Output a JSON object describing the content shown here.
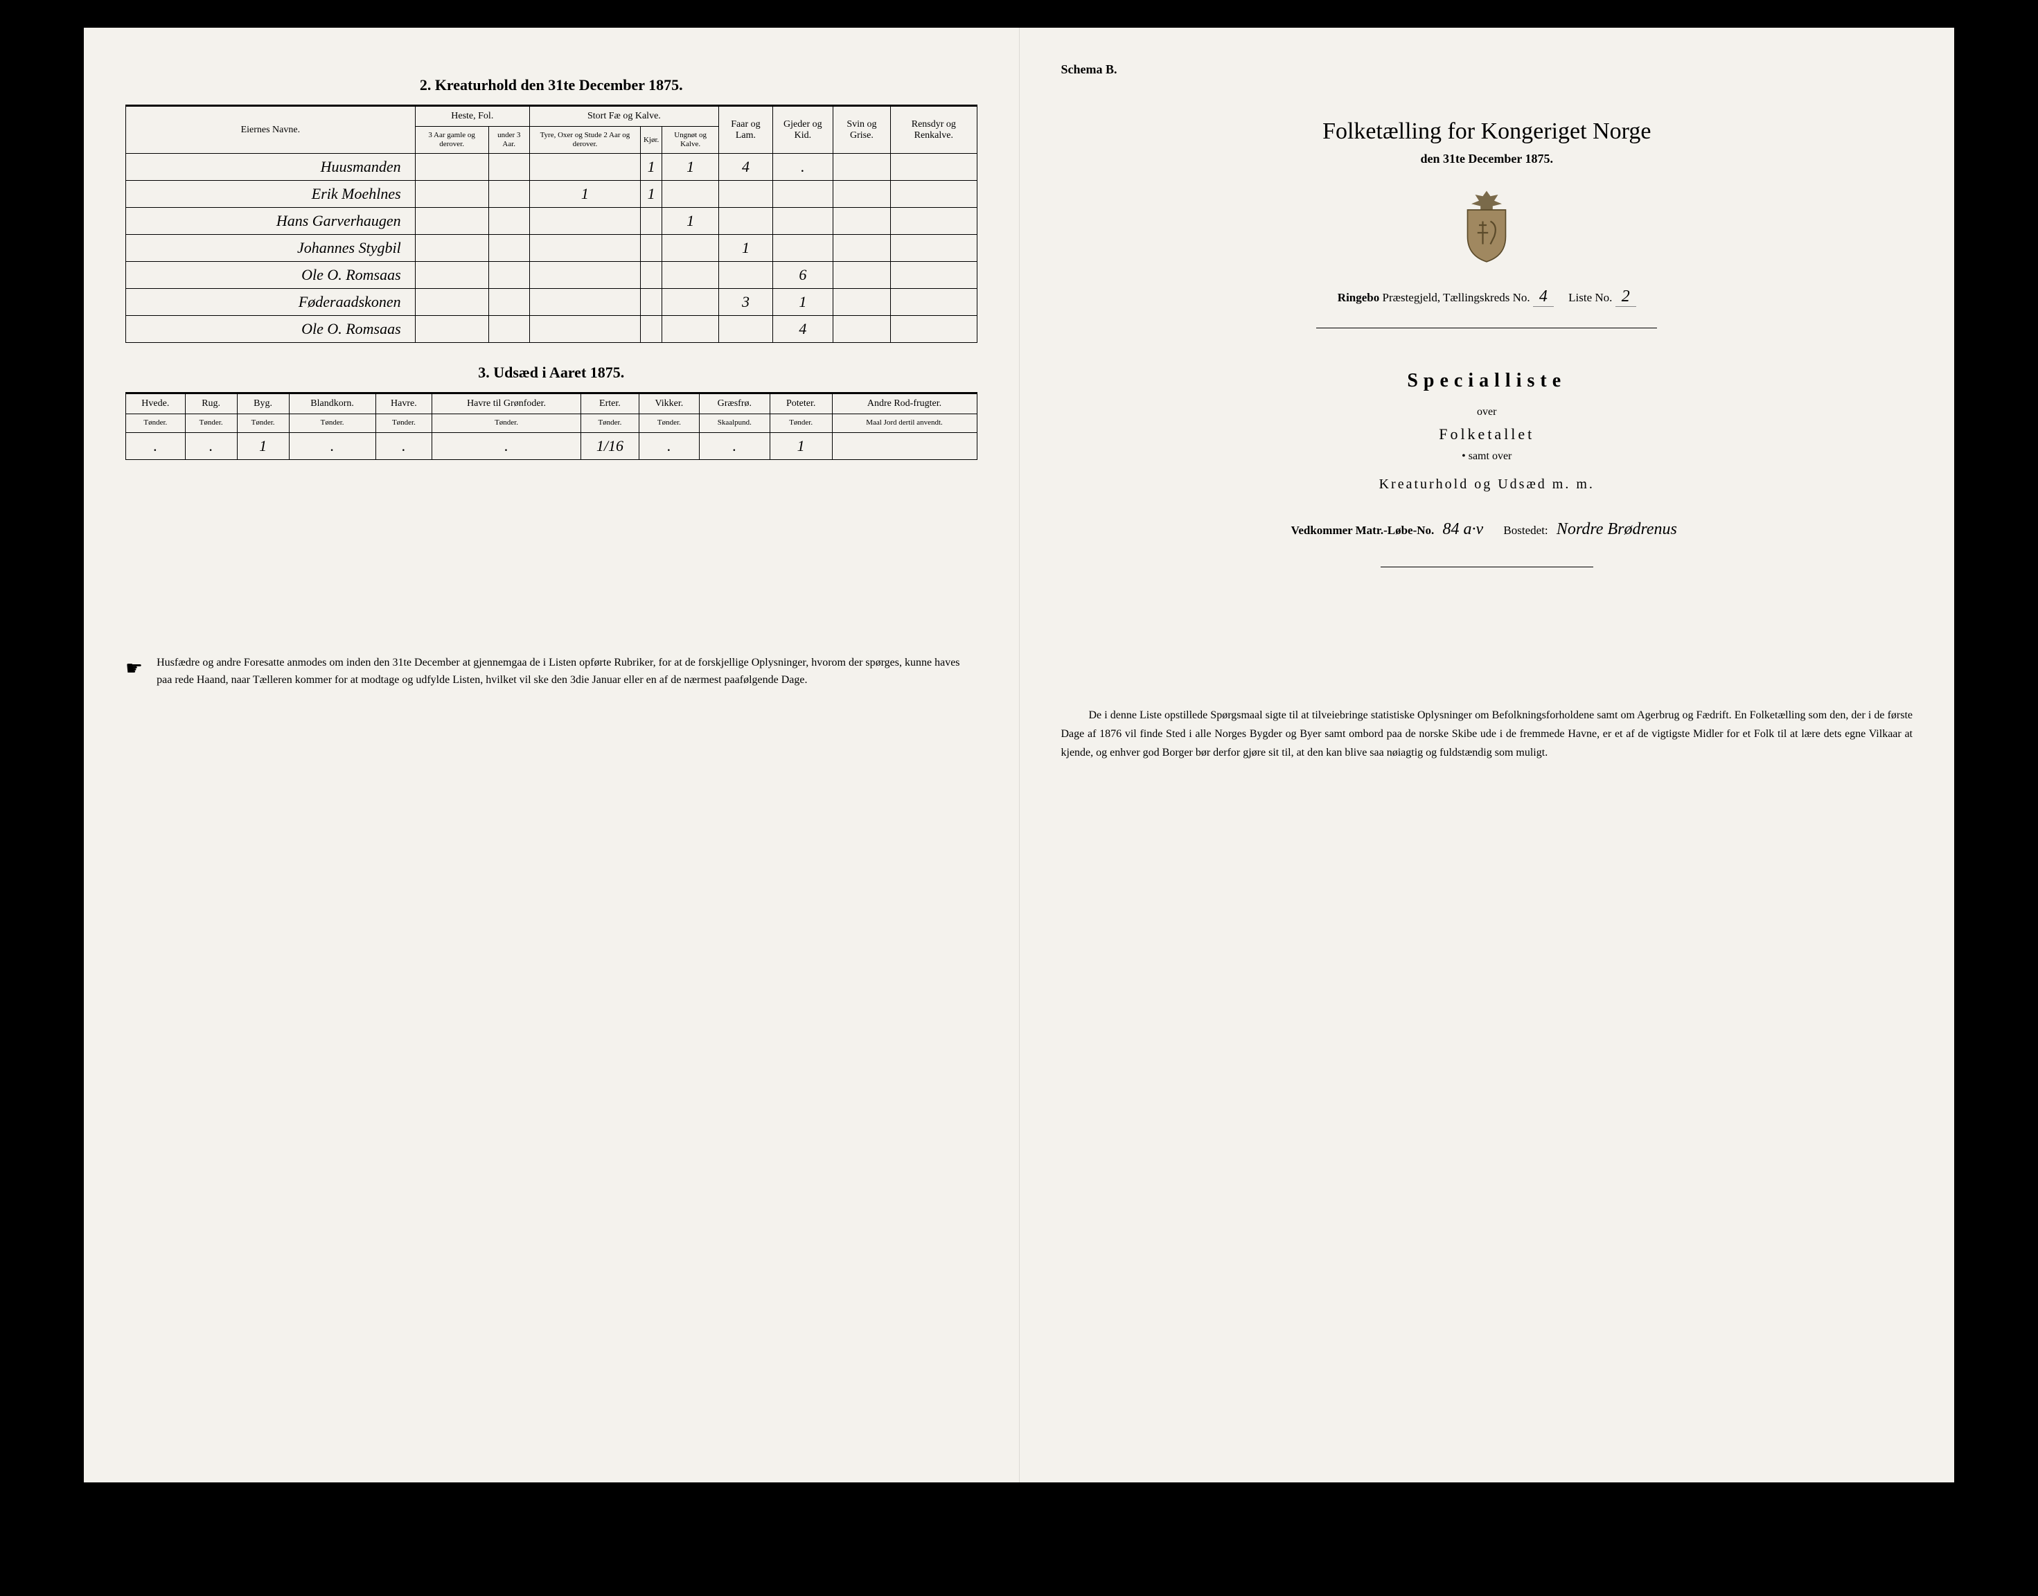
{
  "left": {
    "section2_title": "2. Kreaturhold den 31te December 1875.",
    "table2": {
      "header_groups": {
        "eier": "Eiernes Navne.",
        "heste": "Heste, Fol.",
        "stort": "Stort Fæ og Kalve.",
        "faar": "Faar og Lam.",
        "gjeder": "Gjeder og Kid.",
        "svin": "Svin og Grise.",
        "ren": "Rensdyr og Renkalve."
      },
      "header_sub": {
        "heste1": "3 Aar gamle og derover.",
        "heste2": "under 3 Aar.",
        "stort1": "Tyre, Oxer og Stude 2 Aar og derover.",
        "stort2": "Kjør.",
        "stort3": "Ungnøt og Kalve."
      },
      "rows": [
        {
          "owner": "Huusmanden",
          "h1": "",
          "h2": "",
          "s1": "",
          "s2": "1",
          "s3": "1",
          "faar": "4",
          "gjed": ".",
          "svin": "",
          "ren": ""
        },
        {
          "owner": "Erik Moehlnes",
          "h1": "",
          "h2": "",
          "s1": "1",
          "s2": "1",
          "s3": "",
          "faar": "",
          "gjed": "",
          "svin": "",
          "ren": ""
        },
        {
          "owner": "Hans Garverhaugen",
          "h1": "",
          "h2": "",
          "s1": "",
          "s2": "",
          "s3": "1",
          "faar": "",
          "gjed": "",
          "svin": "",
          "ren": ""
        },
        {
          "owner": "Johannes Stygbil",
          "h1": "",
          "h2": "",
          "s1": "",
          "s2": "",
          "s3": "",
          "faar": "1",
          "gjed": "",
          "svin": "",
          "ren": ""
        },
        {
          "owner": "Ole O. Romsaas",
          "h1": "",
          "h2": "",
          "s1": "",
          "s2": "",
          "s3": "",
          "faar": "",
          "gjed": "6",
          "svin": "",
          "ren": ""
        },
        {
          "owner": "Føderaadskonen",
          "h1": "",
          "h2": "",
          "s1": "",
          "s2": "",
          "s3": "",
          "faar": "3",
          "gjed": "1",
          "svin": "",
          "ren": ""
        },
        {
          "owner": "Ole O. Romsaas",
          "h1": "",
          "h2": "",
          "s1": "",
          "s2": "",
          "s3": "",
          "faar": "",
          "gjed": "4",
          "svin": "",
          "ren": ""
        }
      ]
    },
    "section3_title": "3. Udsæd i Aaret 1875.",
    "table3": {
      "headers": [
        "Hvede.",
        "Rug.",
        "Byg.",
        "Blandkorn.",
        "Havre.",
        "Havre til Grønfoder.",
        "Erter.",
        "Vikker.",
        "Græsfrø.",
        "Poteter.",
        "Andre Rod-frugter."
      ],
      "sub": [
        "Tønder.",
        "Tønder.",
        "Tønder.",
        "Tønder.",
        "Tønder.",
        "Tønder.",
        "Tønder.",
        "Tønder.",
        "Skaalpund.",
        "Tønder.",
        "Maal Jord dertil anvendt."
      ],
      "row": [
        ".",
        ".",
        "1",
        ".",
        ".",
        ".",
        "1/16",
        ".",
        ".",
        "1",
        ""
      ]
    },
    "footnote": "Husfædre og andre Foresatte anmodes om inden den 31te December at gjennemgaa de i Listen opførte Rubriker, for at de forskjellige Oplysninger, hvorom der spørges, kunne haves paa rede Haand, naar Tælleren kommer for at modtage og udfylde Listen, hvilket vil ske den 3die Januar eller en af de nærmest paafølgende Dage."
  },
  "right": {
    "schema": "Schema B.",
    "title": "Folketælling for Kongeriget Norge",
    "subtitle": "den 31te December 1875.",
    "district_prefix": "Ringebo",
    "district_label": "Præstegjeld, Tællingskreds No.",
    "district_no": "4",
    "liste_label": "Liste No.",
    "liste_no": "2",
    "specialliste": "Specialliste",
    "over": "over",
    "folketallet": "Folketallet",
    "samt_over": "samt over",
    "kreatur": "Kreaturhold og Udsæd m. m.",
    "vedkommer_label": "Vedkommer Matr.-Løbe-No.",
    "matr_no": "84 a·v",
    "bostedet_label": "Bostedet:",
    "bostedet": "Nordre Brødrenus",
    "bottom_para": "De i denne Liste opstillede Spørgsmaal sigte til at tilveiebringe statistiske Oplysninger om Befolkningsforholdene samt om Agerbrug og Fædrift. En Folketælling som den, der i de første Dage af 1876 vil finde Sted i alle Norges Bygder og Byer samt ombord paa de norske Skibe ude i de fremmede Havne, er et af de vigtigste Midler for et Folk til at lære dets egne Vilkaar at kjende, og enhver god Borger bør derfor gjøre sit til, at den kan blive saa nøiagtig og fuldstændig som muligt."
  },
  "colors": {
    "paper": "#f4f2ed",
    "ink": "#000000",
    "frame": "#000000"
  }
}
